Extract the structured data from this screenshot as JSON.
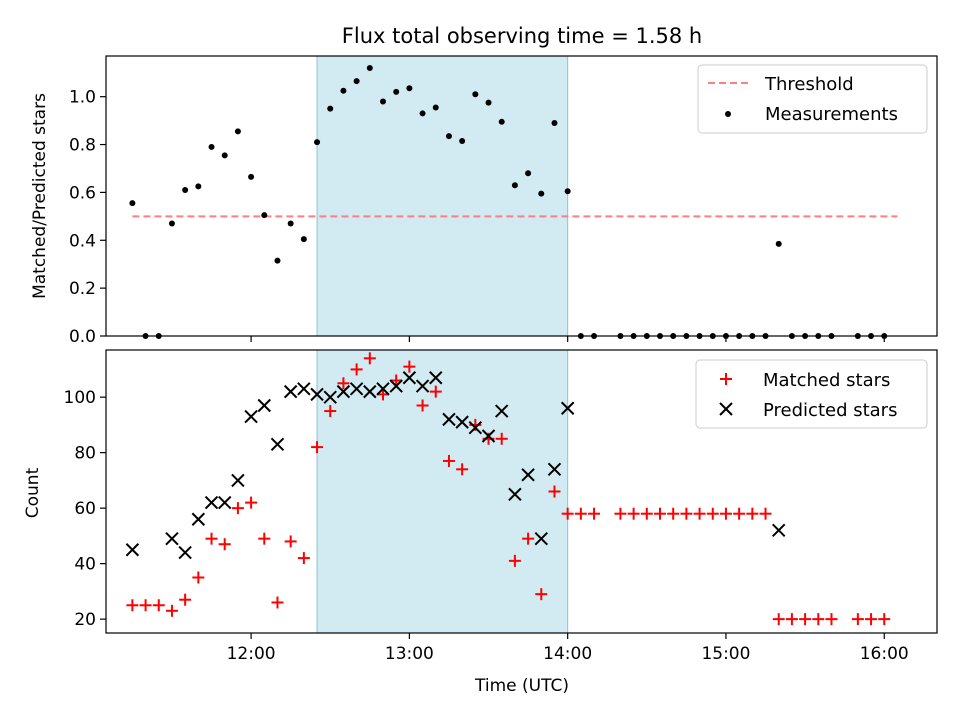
{
  "chart_data": [
    {
      "type": "scatter",
      "title": "Flux total observing time = 1.58 h",
      "xlabel": "",
      "ylabel": "Matched/Predicted stars",
      "xlim": [
        "11:05",
        "16:20"
      ],
      "ylim": [
        0,
        1.17
      ],
      "yticks": [
        0.0,
        0.2,
        0.4,
        0.6,
        0.8,
        1.0
      ],
      "ytick_labels": [
        "0.0",
        "0.2",
        "0.4",
        "0.6",
        "0.8",
        "1.0"
      ],
      "legend": "top-right",
      "shaded_region": {
        "x": [
          "12:25",
          "14:00"
        ],
        "color": "#add8e6"
      },
      "series": [
        {
          "name": "Threshold",
          "kind": "dashed-line",
          "color": "#ff7f7f",
          "x": [
            "11:15",
            "16:05"
          ],
          "y": [
            0.5,
            0.5
          ]
        },
        {
          "name": "Measurements",
          "kind": "points",
          "color": "#000000",
          "x": [
            "11:15",
            "11:20",
            "11:25",
            "11:30",
            "11:35",
            "11:40",
            "11:45",
            "11:50",
            "11:55",
            "12:00",
            "12:05",
            "12:10",
            "12:15",
            "12:20",
            "12:25",
            "12:30",
            "12:35",
            "12:40",
            "12:45",
            "12:50",
            "12:55",
            "13:00",
            "13:05",
            "13:10",
            "13:15",
            "13:20",
            "13:25",
            "13:30",
            "13:35",
            "13:40",
            "13:45",
            "13:50",
            "13:55",
            "14:00",
            "14:05",
            "14:10",
            "14:20",
            "14:25",
            "14:30",
            "14:35",
            "14:40",
            "14:45",
            "14:50",
            "14:55",
            "15:00",
            "15:05",
            "15:10",
            "15:15",
            "15:20",
            "15:25",
            "15:30",
            "15:35",
            "15:40",
            "15:50",
            "15:55",
            "16:00"
          ],
          "y": [
            0.555,
            0,
            0,
            0.47,
            0.61,
            0.625,
            0.79,
            0.755,
            0.855,
            0.665,
            0.505,
            0.315,
            0.47,
            0.405,
            0.81,
            0.95,
            1.025,
            1.065,
            1.12,
            0.98,
            1.02,
            1.035,
            0.93,
            0.955,
            0.835,
            0.815,
            1.01,
            0.975,
            0.895,
            0.63,
            0.68,
            0.595,
            0.89,
            0.605,
            0,
            0,
            0,
            0,
            0,
            0,
            0,
            0,
            0,
            0,
            0,
            0,
            0,
            0,
            0.385,
            0,
            0,
            0,
            0,
            0,
            0,
            0
          ]
        }
      ]
    },
    {
      "type": "scatter",
      "title": "",
      "xlabel": "Time (UTC)",
      "ylabel": "Count",
      "xlim": [
        "11:05",
        "16:20"
      ],
      "ylim": [
        15,
        117
      ],
      "yticks": [
        20,
        40,
        60,
        80,
        100
      ],
      "ytick_labels": [
        "20",
        "40",
        "60",
        "80",
        "100"
      ],
      "xticks": [
        "12:00",
        "13:00",
        "14:00",
        "15:00",
        "16:00"
      ],
      "xtick_labels": [
        "12:00",
        "13:00",
        "14:00",
        "15:00",
        "16:00"
      ],
      "legend": "top-right",
      "shaded_region": {
        "x": [
          "12:25",
          "14:00"
        ],
        "color": "#add8e6"
      },
      "series": [
        {
          "name": "Matched stars",
          "kind": "plus",
          "color": "#ff0000",
          "x": [
            "11:15",
            "11:20",
            "11:25",
            "11:30",
            "11:35",
            "11:40",
            "11:45",
            "11:50",
            "11:55",
            "12:00",
            "12:05",
            "12:10",
            "12:15",
            "12:20",
            "12:25",
            "12:30",
            "12:35",
            "12:40",
            "12:45",
            "12:50",
            "12:55",
            "13:00",
            "13:05",
            "13:10",
            "13:15",
            "13:20",
            "13:25",
            "13:30",
            "13:35",
            "13:40",
            "13:45",
            "13:50",
            "13:55",
            "14:00",
            "14:05",
            "14:10",
            "14:20",
            "14:25",
            "14:30",
            "14:35",
            "14:40",
            "14:45",
            "14:50",
            "14:55",
            "15:00",
            "15:05",
            "15:10",
            "15:15",
            "15:20",
            "15:25",
            "15:30",
            "15:35",
            "15:40",
            "15:50",
            "15:55",
            "16:00"
          ],
          "y": [
            25,
            25,
            25,
            23,
            27,
            35,
            49,
            47,
            60,
            62,
            49,
            26,
            48,
            42,
            82,
            95,
            105,
            110,
            114,
            101,
            106,
            111,
            97,
            102,
            77,
            74,
            90,
            85,
            85,
            41,
            49,
            29,
            66,
            58,
            58,
            58,
            58,
            58,
            58,
            58,
            58,
            58,
            58,
            58,
            58,
            58,
            58,
            58,
            20,
            20,
            20,
            20,
            20,
            20,
            20,
            20
          ]
        },
        {
          "name": "Predicted stars",
          "kind": "x",
          "color": "#000000",
          "x": [
            "11:15",
            "11:30",
            "11:35",
            "11:40",
            "11:45",
            "11:50",
            "11:55",
            "12:00",
            "12:05",
            "12:10",
            "12:15",
            "12:20",
            "12:25",
            "12:30",
            "12:35",
            "12:40",
            "12:45",
            "12:50",
            "12:55",
            "13:00",
            "13:05",
            "13:10",
            "13:15",
            "13:20",
            "13:25",
            "13:30",
            "13:35",
            "13:40",
            "13:45",
            "13:50",
            "13:55",
            "14:00",
            "15:20"
          ],
          "y": [
            45,
            49,
            44,
            56,
            62,
            62,
            70,
            93,
            97,
            83,
            102,
            103,
            101,
            100,
            102,
            103,
            102,
            103,
            104,
            107,
            104,
            107,
            92,
            91,
            89,
            86,
            95,
            65,
            72,
            49,
            74,
            96,
            52
          ]
        }
      ]
    }
  ]
}
